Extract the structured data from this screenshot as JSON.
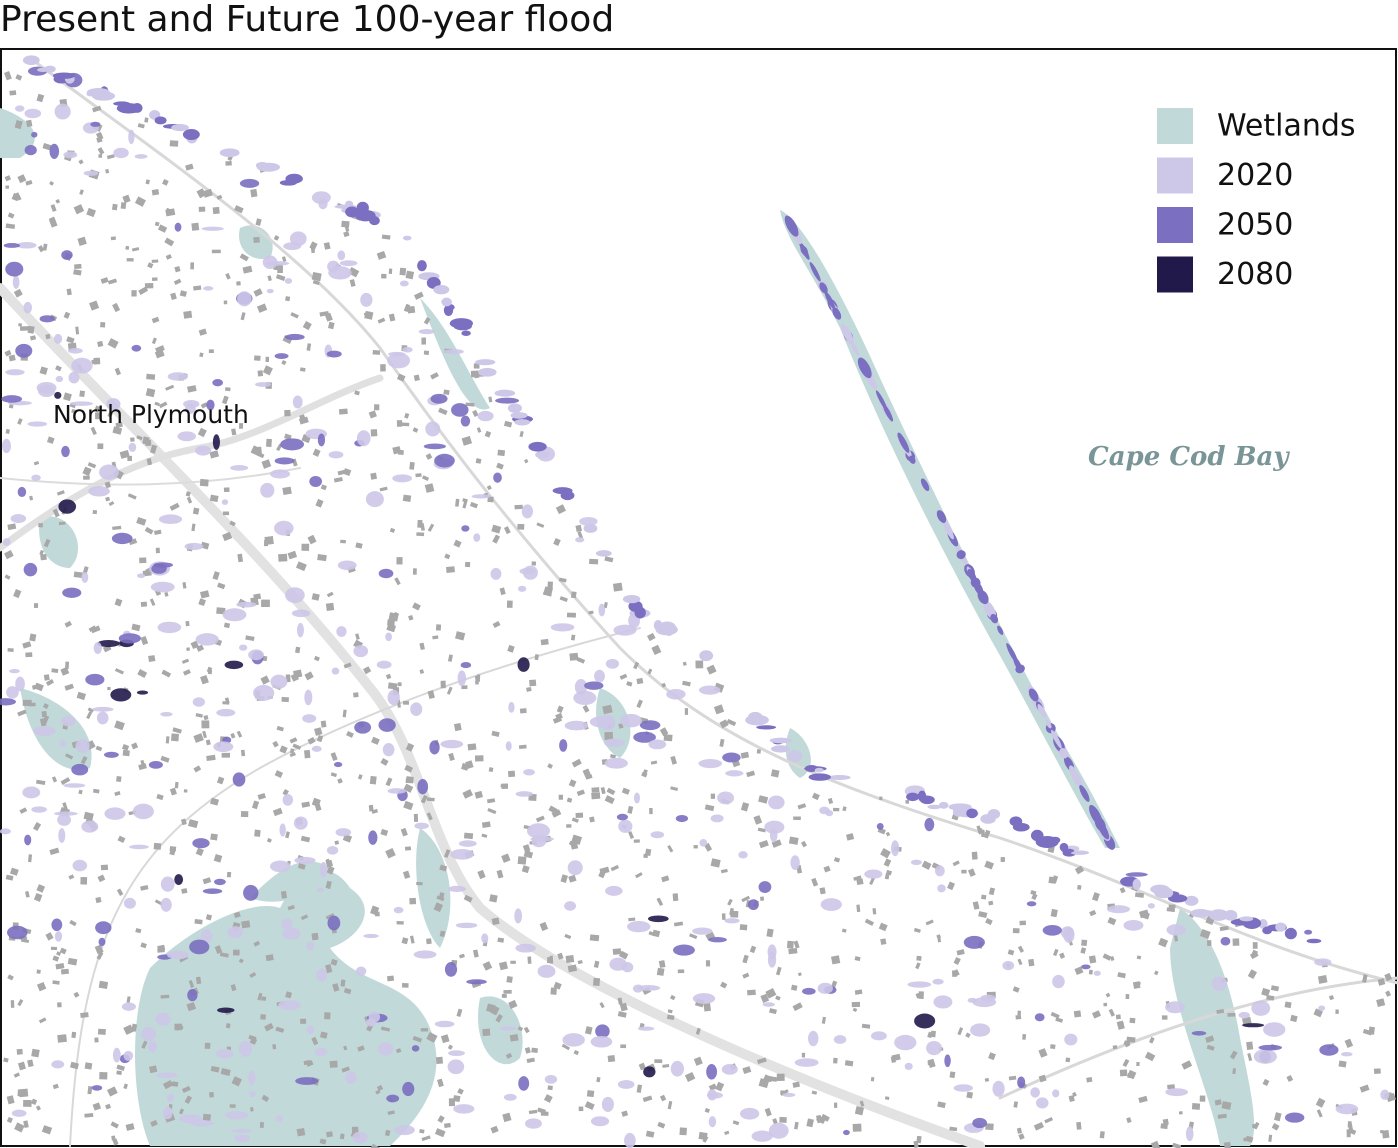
{
  "title": "Present and Future 100-year flood",
  "legend": [
    {
      "label": "Wetlands",
      "color": "#c2d9da"
    },
    {
      "label": "2020",
      "color": "#cdc7e8"
    },
    {
      "label": "2050",
      "color": "#7a6fc0"
    },
    {
      "label": "2080",
      "color": "#21194a"
    }
  ],
  "place_labels": {
    "town": "North Plymouth",
    "water": "Cape Cod Bay"
  }
}
